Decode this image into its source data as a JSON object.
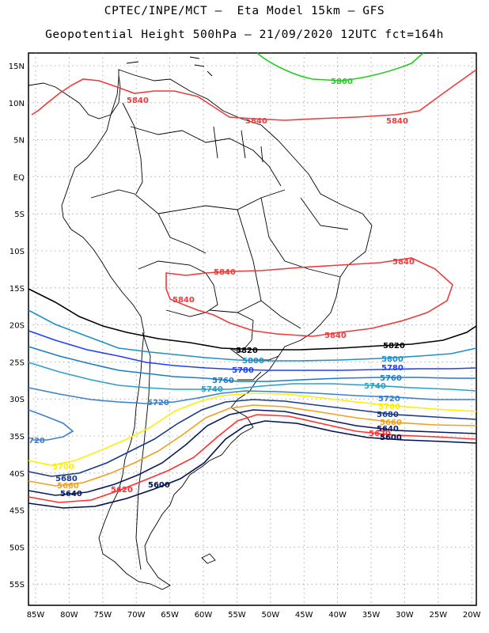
{
  "title_line1": "CPTEC/INPE/MCT –  Eta Model 15km – GFS",
  "title_line2": "Geopotential Height 500hPa – 21/09/2020 12UTC fct=164h",
  "lat_labels": [
    "15N",
    "10N",
    "5N",
    "EQ",
    "5S",
    "10S",
    "15S",
    "20S",
    "25S",
    "30S",
    "35S",
    "40S",
    "45S",
    "50S",
    "55S"
  ],
  "lon_labels": [
    "85W",
    "80W",
    "75W",
    "70W",
    "65W",
    "60W",
    "55W",
    "50W",
    "45W",
    "40W",
    "35W",
    "30W",
    "25W",
    "20W"
  ],
  "contour_labels": {
    "c5860": "5860",
    "c5840_a": "5840",
    "c5840_b": "5840",
    "c5840_c": "5840",
    "c5840_d": "5840",
    "c5840_e": "5840",
    "c5840_f": "5840",
    "c5840_g": "5840",
    "c5820_a": "5820",
    "c5820_b": "5820",
    "c5800_a": "5800",
    "c5800_b": "5800",
    "c5780_a": "5780",
    "c5780_b": "5780",
    "c5760_a": "5760",
    "c5760_b": "5760",
    "c5740_a": "5740",
    "c5740_b": "5740",
    "c5720_a": "5720",
    "c5720_b": "5720",
    "c5720_c": "720",
    "c5700_a": "5700",
    "c5700_b": "5700",
    "c5680_a": "5680",
    "c5680_b": "5680",
    "c5660_a": "5660",
    "c5660_b": "5660",
    "c5640_a": "5640",
    "c5640_b": "5640",
    "c5620_a": "5620",
    "c5620_b": "5620",
    "c5600_a": "5600",
    "c5600_b": "5600"
  },
  "colors": {
    "c5860": "#22cc22",
    "c5840": "#ee3b3b",
    "c5820": "#000000",
    "c5800": "#1e90c8",
    "c5780": "#1f3fff",
    "c5760": "#1c7cc8",
    "c5740": "#2aa0c8",
    "c5720": "#3a80d0",
    "c5700": "#ffee00",
    "c5680": "#1a3a8a",
    "c5660": "#f0a020",
    "c5640": "#0a1a60",
    "c5620": "#ff3030",
    "c5600": "#001050",
    "coast": "#000000",
    "grid": "#9a9a9a"
  }
}
